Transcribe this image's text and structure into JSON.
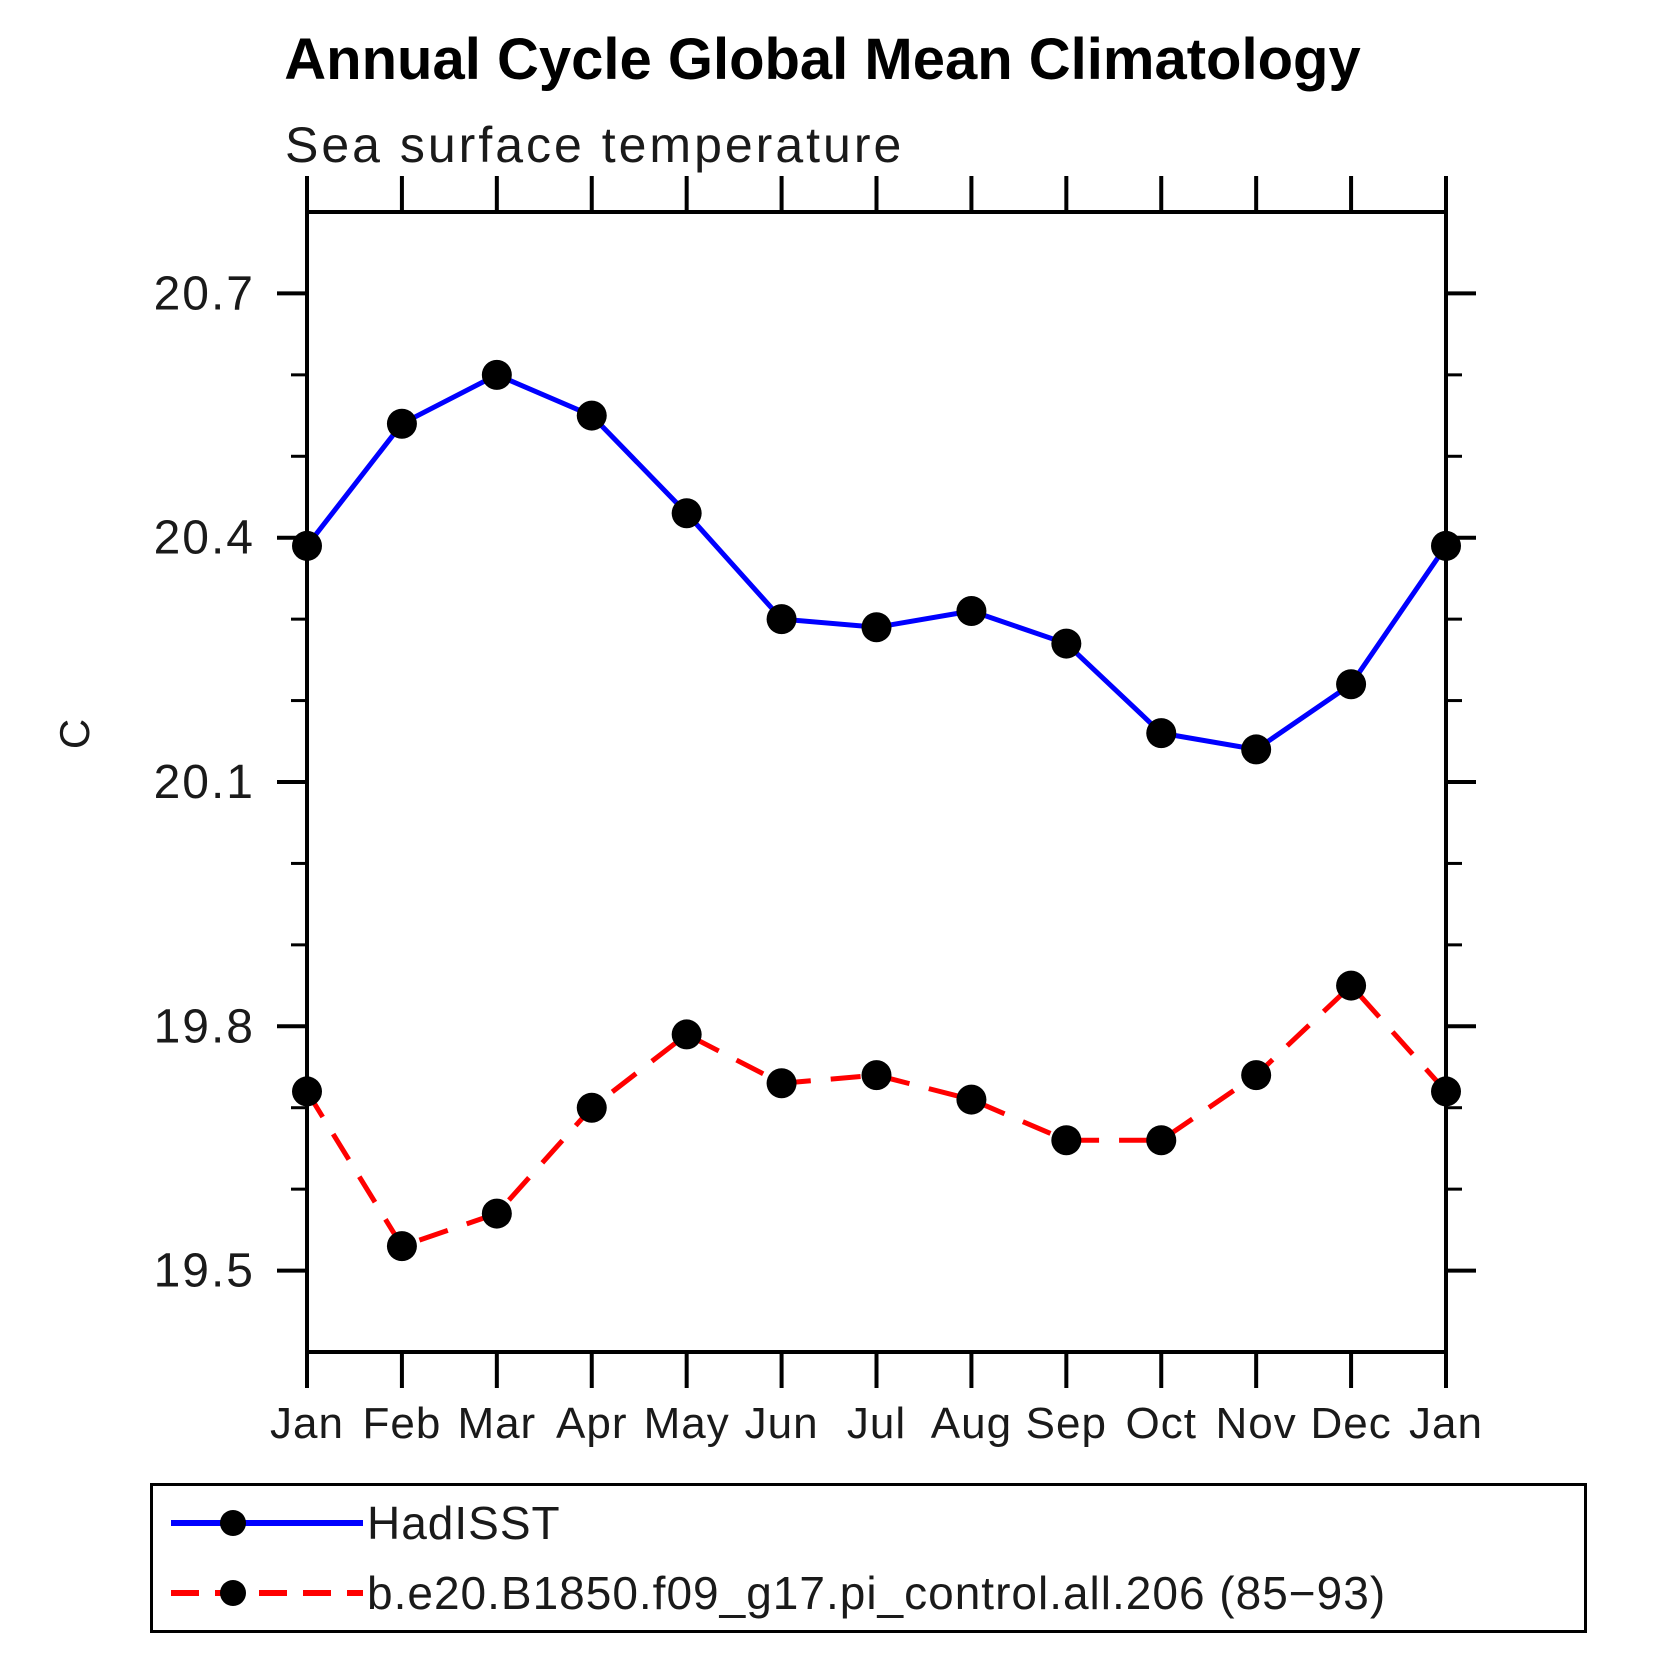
{
  "title": "Annual Cycle Global Mean Climatology",
  "subtitle": "Sea surface temperature",
  "ylabel": "C",
  "chart_data": {
    "type": "line",
    "title": "Annual Cycle Global Mean Climatology",
    "subtitle": "Sea surface temperature",
    "ylabel": "C",
    "categories": [
      "Jan",
      "Feb",
      "Mar",
      "Apr",
      "May",
      "Jun",
      "Jul",
      "Aug",
      "Sep",
      "Oct",
      "Nov",
      "Dec",
      "Jan"
    ],
    "series": [
      {
        "name": "HadISST",
        "color": "#0000ff",
        "line_style": "solid",
        "marker": "filled-circle",
        "marker_color": "#000000",
        "values": [
          20.39,
          20.54,
          20.6,
          20.55,
          20.43,
          20.3,
          20.29,
          20.31,
          20.27,
          20.16,
          20.14,
          20.22,
          20.39
        ]
      },
      {
        "name": "b.e20.B1850.f09_g17.pi_control.all.206 (85−93)",
        "color": "#ff0000",
        "line_style": "dashed",
        "marker": "filled-circle",
        "marker_color": "#000000",
        "values": [
          19.72,
          19.53,
          19.57,
          19.7,
          19.79,
          19.73,
          19.74,
          19.71,
          19.66,
          19.66,
          19.74,
          19.85,
          19.72
        ]
      }
    ],
    "ylim": [
      19.4,
      20.8
    ],
    "yticks_major": [
      19.5,
      19.8,
      20.1,
      20.4,
      20.7
    ],
    "ytick_minor_step": 0.1,
    "grid": false,
    "legend_position": "bottom-left-box",
    "axis_color": "#000000"
  }
}
